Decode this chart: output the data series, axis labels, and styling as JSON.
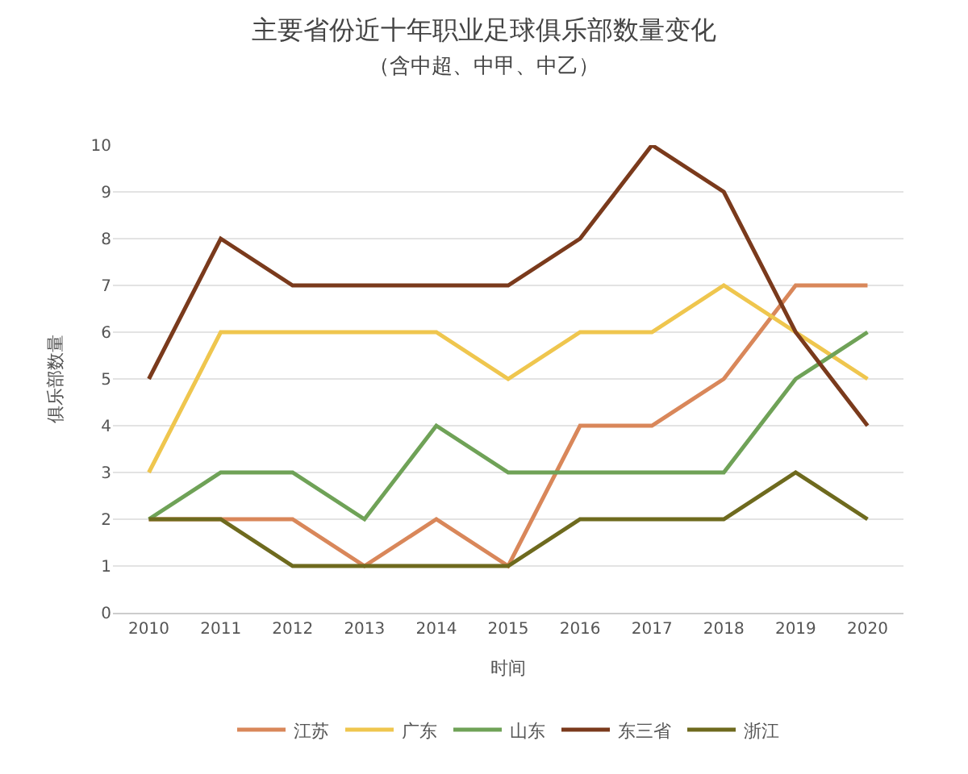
{
  "chart_data": {
    "type": "line",
    "title": "主要省份近十年职业足球俱乐部数量变化",
    "subtitle": "（含中超、中甲、中乙）",
    "xlabel": "时间",
    "ylabel": "俱乐部数量",
    "categories": [
      "2010",
      "2011",
      "2012",
      "2013",
      "2014",
      "2015",
      "2016",
      "2017",
      "2018",
      "2019",
      "2020"
    ],
    "series": [
      {
        "name": "江苏",
        "color": "#d9875a",
        "values": [
          2,
          2,
          2,
          1,
          2,
          1,
          4,
          4,
          5,
          7,
          7
        ]
      },
      {
        "name": "广东",
        "color": "#efc64e",
        "values": [
          3,
          6,
          6,
          6,
          6,
          5,
          6,
          6,
          7,
          6,
          5
        ]
      },
      {
        "name": "山东",
        "color": "#6fa257",
        "values": [
          2,
          3,
          3,
          2,
          4,
          3,
          3,
          3,
          3,
          5,
          6
        ]
      },
      {
        "name": "东三省",
        "color": "#7a3a1c",
        "values": [
          5,
          8,
          7,
          7,
          7,
          7,
          8,
          10,
          9,
          6,
          4
        ]
      },
      {
        "name": "浙江",
        "color": "#6e6a1e",
        "values": [
          2,
          2,
          1,
          1,
          1,
          1,
          2,
          2,
          2,
          3,
          2
        ]
      }
    ],
    "ylim": [
      0,
      10
    ],
    "yticks": [
      0,
      1,
      2,
      3,
      4,
      5,
      6,
      7,
      8,
      9,
      10
    ],
    "grid": "y",
    "legend": "bottom",
    "marker": "none",
    "line_style": "solid"
  }
}
